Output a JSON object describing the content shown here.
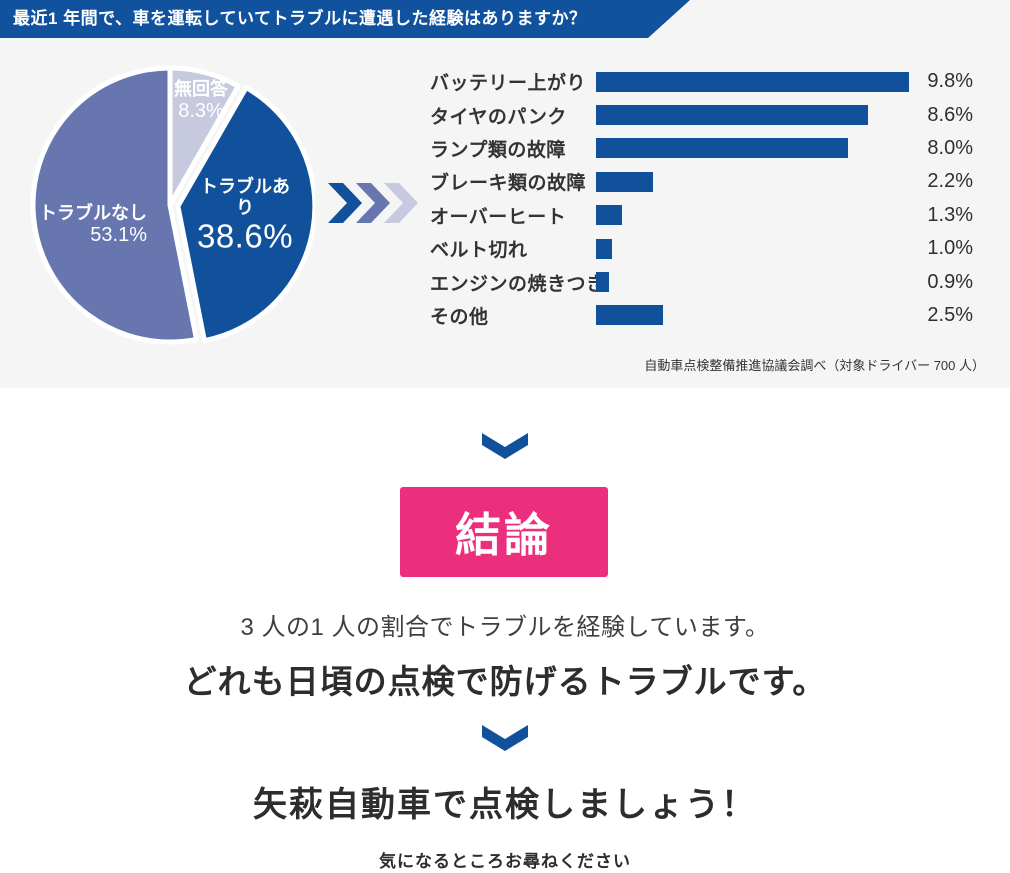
{
  "header": {
    "title": "最近1 年間で、車を運転していてトラブルに遭遇した経験はありますか？"
  },
  "chart_data": [
    {
      "type": "pie",
      "labels": [
        "無回答",
        "トラブルあり",
        "トラブルなし"
      ],
      "values": [
        8.3,
        38.6,
        53.1
      ],
      "value_labels": [
        "8.3%",
        "38.6%",
        "53.1%"
      ],
      "colors": [
        "#C7CADF",
        "#11519C",
        "#6776AE"
      ],
      "start_angle": "12-oclock",
      "direction": "clockwise",
      "exploded_slice": "トラブルあり"
    },
    {
      "type": "bar",
      "orientation": "horizontal",
      "categories": [
        "バッテリー上がり",
        "タイヤのパンク",
        "ランプ類の故障",
        "ブレーキ類の故障",
        "オーバーヒート",
        "ベルト切れ",
        "エンジンの焼きつき",
        "その他"
      ],
      "values": [
        9.8,
        8.6,
        8.0,
        2.2,
        1.3,
        1.0,
        0.9,
        2.5
      ],
      "value_labels": [
        "9.8%",
        "8.6%",
        "8.0%",
        "2.2%",
        "1.3%",
        "1.0%",
        "0.9%",
        "2.5%"
      ],
      "bar_color": "#11519C",
      "xlim": [
        0,
        10
      ],
      "grid": false,
      "legend": "none"
    }
  ],
  "survey": {
    "source": "自動車点検整備推進協議会調べ（対象ドライバー 700 人）"
  },
  "conclusion": {
    "badge": "結論",
    "line1": "3 人の1 人の割合でトラブルを経験しています。",
    "line2": "どれも日頃の点検で防げるトラブルです。"
  },
  "cta": {
    "heading": "矢萩自動車で点検しましょう！",
    "subtext": "気になるところお尋ねください"
  },
  "colors": {
    "primary_blue": "#11519C",
    "header_blue": "#11529E",
    "slate_purple": "#6776AE",
    "light_lavender": "#C7CADF",
    "accent_pink": "#EB2F7D",
    "section_bg": "#F5F5F6",
    "text_dark": "#2d2d2d"
  }
}
